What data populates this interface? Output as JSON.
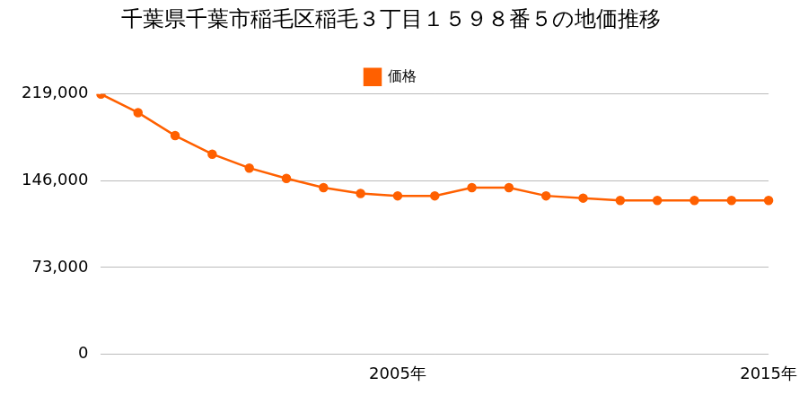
{
  "chart_data": {
    "type": "line",
    "title": "千葉県千葉市稲毛区稲毛３丁目１５９８番５の地価推移",
    "categories": [
      null,
      null,
      null,
      null,
      null,
      null,
      null,
      null,
      "2005年",
      null,
      null,
      null,
      null,
      null,
      null,
      null,
      null,
      null,
      "2015年"
    ],
    "series": [
      {
        "name": "価格",
        "color": "#ff6000",
        "marker": "circle",
        "values": [
          219000,
          203400,
          184000,
          168400,
          156700,
          148000,
          140200,
          135300,
          133300,
          133300,
          140200,
          140200,
          133300,
          131400,
          129400,
          129400,
          129400,
          129400,
          129400
        ]
      }
    ],
    "ylim": [
      0,
      219000
    ],
    "yticks": [
      0,
      {
        "value": 73000,
        "label": "73,000"
      },
      {
        "value": 146000,
        "label": "146,000"
      },
      {
        "value": 219000,
        "label": "219,000"
      }
    ],
    "grid": true,
    "legend": "top"
  }
}
